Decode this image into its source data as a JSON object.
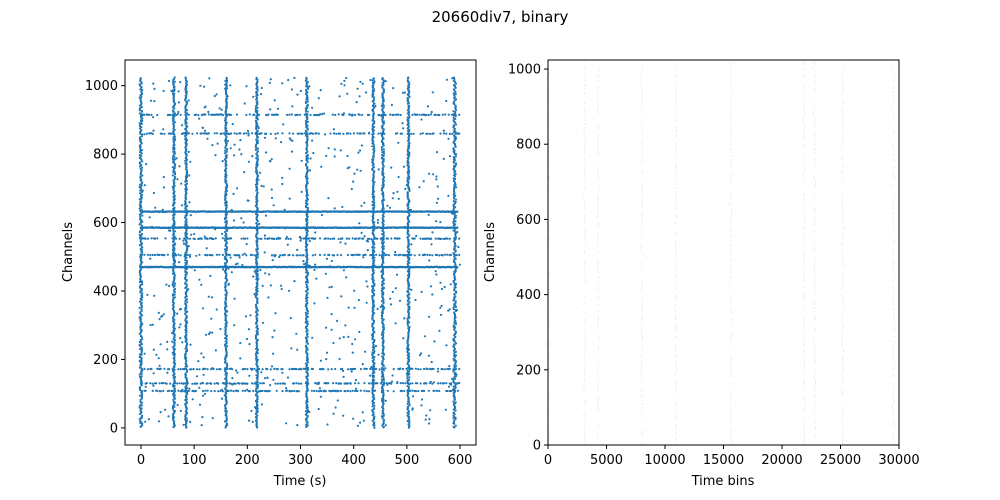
{
  "figure": {
    "title": "20660div7, binary"
  },
  "chart_data": [
    {
      "type": "scatter",
      "title": "",
      "xlabel": "Time (s)",
      "ylabel": "Channels",
      "xlim": [
        -30,
        630
      ],
      "ylim": [
        -50,
        1075
      ],
      "xticks": [
        0,
        100,
        200,
        300,
        400,
        500,
        600
      ],
      "yticks": [
        0,
        200,
        400,
        600,
        800,
        1000
      ],
      "grid": false,
      "color": "#1f77b4",
      "burst_times": [
        0,
        62,
        85,
        160,
        218,
        312,
        437,
        455,
        503,
        590
      ],
      "dense_channels": [
        470,
        585,
        632
      ],
      "medium_channels": [
        915,
        860,
        553,
        505,
        130,
        108,
        172
      ],
      "channel_range": [
        0,
        1023
      ],
      "time_range": [
        0,
        600
      ]
    },
    {
      "type": "raster",
      "title": "",
      "xlabel": "Time bins",
      "ylabel": "Channels",
      "xlim": [
        0,
        30000
      ],
      "ylim": [
        0,
        1024
      ],
      "xticks": [
        0,
        5000,
        10000,
        15000,
        20000,
        25000,
        30000
      ],
      "yticks": [
        0,
        200,
        400,
        600,
        800,
        1000
      ],
      "grid": false,
      "color": "#d9d9d9",
      "burst_bins": [
        0,
        3100,
        4250,
        8000,
        10900,
        15600,
        21850,
        22750,
        25150,
        29500
      ]
    }
  ]
}
